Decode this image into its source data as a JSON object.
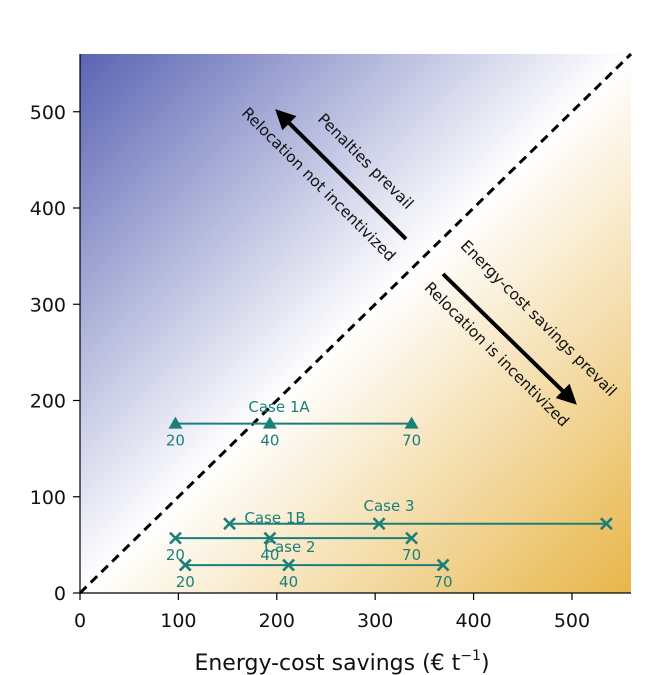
{
  "colors": {
    "teal": "#1a7f7a",
    "gradient_top_left": "#5a64b3",
    "gradient_mid": "#ffffff",
    "gradient_bottom_right": "#e8b548",
    "diagonal": "#000000"
  },
  "chart_data": {
    "type": "scatter",
    "xlabel": "Energy-cost savings (€ t",
    "xlabel_sup": "−1",
    "xlabel_close": ")",
    "ylabel": "",
    "xlim": [
      0,
      560
    ],
    "ylim": [
      0,
      560
    ],
    "xticks": [
      0,
      100,
      200,
      300,
      400,
      500
    ],
    "yticks": [
      0,
      100,
      200,
      300,
      400,
      500
    ],
    "grid": false,
    "diagonal": "y = x",
    "annotations": [
      {
        "text": "Penalties prevail",
        "side": "upper-left"
      },
      {
        "text": "Relocation not incentivized",
        "side": "upper-left"
      },
      {
        "text": "Energy-cost savings prevail",
        "side": "lower-right"
      },
      {
        "text": "Relocation is incentivized",
        "side": "lower-right"
      }
    ],
    "series": [
      {
        "name": "Case 1A",
        "marker": "triangle",
        "y": 176,
        "points": [
          {
            "x": 97,
            "label": "20"
          },
          {
            "x": 193,
            "label": "40"
          },
          {
            "x": 337,
            "label": "70"
          }
        ]
      },
      {
        "name": "Case 1B",
        "marker": "x",
        "y": 57,
        "points": [
          {
            "x": 97,
            "label": "20"
          },
          {
            "x": 193,
            "label": "40"
          },
          {
            "x": 337,
            "label": "70"
          }
        ]
      },
      {
        "name": "Case 2",
        "marker": "x",
        "y": 29,
        "points": [
          {
            "x": 107,
            "label": "20"
          },
          {
            "x": 212,
            "label": "40"
          },
          {
            "x": 369,
            "label": "70"
          }
        ]
      },
      {
        "name": "Case 3",
        "marker": "x",
        "y": 72,
        "points": [
          {
            "x": 152,
            "label": ""
          },
          {
            "x": 304,
            "label": ""
          },
          {
            "x": 535,
            "label": ""
          }
        ]
      }
    ]
  }
}
